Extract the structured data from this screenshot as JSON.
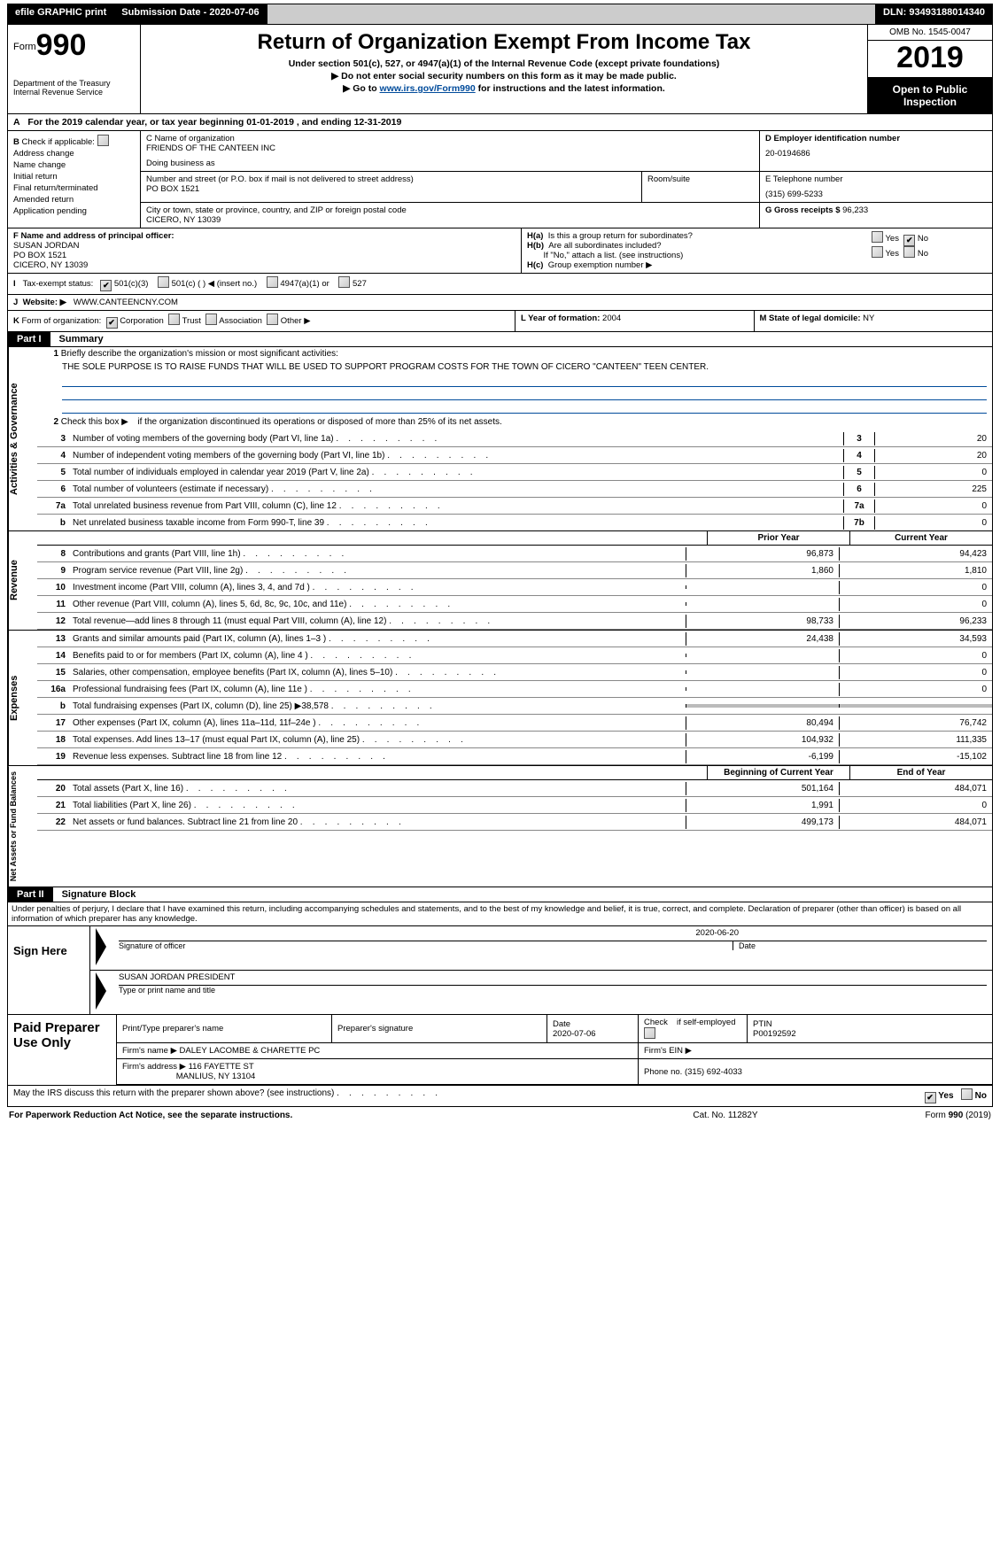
{
  "topbar": {
    "efile": "efile GRAPHIC print",
    "submission_label": "Submission Date - ",
    "submission_date": "2020-07-06",
    "dln_label": "DLN: ",
    "dln": "93493188014340"
  },
  "header": {
    "form_prefix": "Form",
    "form_number": "990",
    "dept": "Department of the Treasury\nInternal Revenue Service",
    "title": "Return of Organization Exempt From Income Tax",
    "sub1": "Under section 501(c), 527, or 4947(a)(1) of the Internal Revenue Code (except private foundations)",
    "sub2": "▶ Do not enter social security numbers on this form as it may be made public.",
    "sub3_pre": "▶ Go to ",
    "sub3_link": "www.irs.gov/Form990",
    "sub3_post": " for instructions and the latest information.",
    "omb": "OMB No. 1545-0047",
    "year": "2019",
    "open": "Open to Public Inspection"
  },
  "line_a": {
    "text_pre": "For the 2019 calendar year, or tax year beginning ",
    "begin": "01-01-2019",
    "mid": " , and ending ",
    "end": "12-31-2019"
  },
  "section_b": {
    "label": "Check if applicable:",
    "opts": [
      "Address change",
      "Name change",
      "Initial return",
      "Final return/terminated",
      "Amended return",
      "Application pending"
    ]
  },
  "section_c": {
    "name_label": "C Name of organization",
    "name": "FRIENDS OF THE CANTEEN INC",
    "dba_label": "Doing business as",
    "dba": "",
    "street_label": "Number and street (or P.O. box if mail is not delivered to street address)",
    "street": "PO BOX 1521",
    "room_label": "Room/suite",
    "city_label": "City or town, state or province, country, and ZIP or foreign postal code",
    "city": "CICERO, NY  13039"
  },
  "section_d": {
    "label": "D Employer identification number",
    "value": "20-0194686"
  },
  "section_e": {
    "label": "E Telephone number",
    "value": "(315) 699-5233"
  },
  "section_g": {
    "label": "G Gross receipts $ ",
    "value": "96,233"
  },
  "section_f": {
    "label": "F  Name and address of principal officer:",
    "name": "SUSAN JORDAN",
    "street": "PO BOX 1521",
    "city": "CICERO, NY  13039"
  },
  "section_h": {
    "a": "Is this a group return for subordinates?",
    "b": "Are all subordinates included?",
    "note": "If \"No,\" attach a list. (see instructions)",
    "c": "Group exemption number ▶",
    "yes": "Yes",
    "no": "No"
  },
  "section_i": {
    "label": "Tax-exempt status:",
    "o1": "501(c)(3)",
    "o2": "501(c) (  ) ◀ (insert no.)",
    "o3": "4947(a)(1) or",
    "o4": "527"
  },
  "section_j": {
    "label": "Website: ▶",
    "value": "WWW.CANTEENCNY.COM"
  },
  "section_k": {
    "label": "Form of organization:",
    "o1": "Corporation",
    "o2": "Trust",
    "o3": "Association",
    "o4": "Other ▶"
  },
  "section_l": {
    "label": "L Year of formation: ",
    "value": "2004"
  },
  "section_m": {
    "label": "M State of legal domicile: ",
    "value": "NY"
  },
  "part1": {
    "tag": "Part I",
    "title": "Summary"
  },
  "activities": {
    "vlabel": "Activities & Governance",
    "l1_label": "Briefly describe the organization's mission or most significant activities:",
    "l1_text": "THE SOLE PURPOSE IS TO RAISE FUNDS THAT WILL BE USED TO SUPPORT PROGRAM COSTS FOR THE TOWN OF CICERO \"CANTEEN\" TEEN CENTER.",
    "l2": "Check this box ▶   if the organization discontinued its operations or disposed of more than 25% of its net assets.",
    "rows": [
      {
        "n": "3",
        "t": "Number of voting members of the governing body (Part VI, line 1a)",
        "m": "3",
        "v": "20"
      },
      {
        "n": "4",
        "t": "Number of independent voting members of the governing body (Part VI, line 1b)",
        "m": "4",
        "v": "20"
      },
      {
        "n": "5",
        "t": "Total number of individuals employed in calendar year 2019 (Part V, line 2a)",
        "m": "5",
        "v": "0"
      },
      {
        "n": "6",
        "t": "Total number of volunteers (estimate if necessary)",
        "m": "6",
        "v": "225"
      },
      {
        "n": "7a",
        "t": "Total unrelated business revenue from Part VIII, column (C), line 12",
        "m": "7a",
        "v": "0"
      },
      {
        "n": "b",
        "t": "Net unrelated business taxable income from Form 990-T, line 39",
        "m": "7b",
        "v": "0"
      }
    ]
  },
  "revenue": {
    "vlabel": "Revenue",
    "head_prior": "Prior Year",
    "head_curr": "Current Year",
    "rows": [
      {
        "n": "8",
        "t": "Contributions and grants (Part VIII, line 1h)",
        "p": "96,873",
        "c": "94,423"
      },
      {
        "n": "9",
        "t": "Program service revenue (Part VIII, line 2g)",
        "p": "1,860",
        "c": "1,810"
      },
      {
        "n": "10",
        "t": "Investment income (Part VIII, column (A), lines 3, 4, and 7d )",
        "p": "",
        "c": "0"
      },
      {
        "n": "11",
        "t": "Other revenue (Part VIII, column (A), lines 5, 6d, 8c, 9c, 10c, and 11e)",
        "p": "",
        "c": "0"
      },
      {
        "n": "12",
        "t": "Total revenue—add lines 8 through 11 (must equal Part VIII, column (A), line 12)",
        "p": "98,733",
        "c": "96,233"
      }
    ]
  },
  "expenses": {
    "vlabel": "Expenses",
    "rows": [
      {
        "n": "13",
        "t": "Grants and similar amounts paid (Part IX, column (A), lines 1–3 )",
        "p": "24,438",
        "c": "34,593"
      },
      {
        "n": "14",
        "t": "Benefits paid to or for members (Part IX, column (A), line 4 )",
        "p": "",
        "c": "0"
      },
      {
        "n": "15",
        "t": "Salaries, other compensation, employee benefits (Part IX, column (A), lines 5–10)",
        "p": "",
        "c": "0"
      },
      {
        "n": "16a",
        "t": "Professional fundraising fees (Part IX, column (A), line 11e )",
        "p": "",
        "c": "0"
      },
      {
        "n": "b",
        "t": "Total fundraising expenses (Part IX, column (D), line 25) ▶38,578",
        "p": "grey",
        "c": "grey"
      },
      {
        "n": "17",
        "t": "Other expenses (Part IX, column (A), lines 11a–11d, 11f–24e )",
        "p": "80,494",
        "c": "76,742"
      },
      {
        "n": "18",
        "t": "Total expenses. Add lines 13–17 (must equal Part IX, column (A), line 25)",
        "p": "104,932",
        "c": "111,335"
      },
      {
        "n": "19",
        "t": "Revenue less expenses. Subtract line 18 from line 12",
        "p": "-6,199",
        "c": "-15,102"
      }
    ]
  },
  "netassets": {
    "vlabel": "Net Assets or Fund Balances",
    "head_begin": "Beginning of Current Year",
    "head_end": "End of Year",
    "rows": [
      {
        "n": "20",
        "t": "Total assets (Part X, line 16)",
        "p": "501,164",
        "c": "484,071"
      },
      {
        "n": "21",
        "t": "Total liabilities (Part X, line 26)",
        "p": "1,991",
        "c": "0"
      },
      {
        "n": "22",
        "t": "Net assets or fund balances. Subtract line 21 from line 20",
        "p": "499,173",
        "c": "484,071"
      }
    ]
  },
  "part2": {
    "tag": "Part II",
    "title": "Signature Block"
  },
  "penalties": "Under penalties of perjury, I declare that I have examined this return, including accompanying schedules and statements, and to the best of my knowledge and belief, it is true, correct, and complete. Declaration of preparer (other than officer) is based on all information of which preparer has any knowledge.",
  "sign": {
    "label": "Sign Here",
    "sig_label": "Signature of officer",
    "date_label": "Date",
    "date": "2020-06-20",
    "name": "SUSAN JORDAN  PRESIDENT",
    "name_label": "Type or print name and title"
  },
  "prep": {
    "label": "Paid Preparer Use Only",
    "h_print": "Print/Type preparer's name",
    "h_sig": "Preparer's signature",
    "h_date": "Date",
    "date": "2020-07-06",
    "h_self": "Check   if self-employed",
    "h_ptin": "PTIN",
    "ptin": "P00192592",
    "firm_label": "Firm's name    ▶ ",
    "firm": "DALEY LACOMBE & CHARETTE PC",
    "ein_label": "Firm's EIN ▶",
    "addr_label": "Firm's address ▶ ",
    "addr1": "116 FAYETTE ST",
    "addr2": "MANLIUS, NY  13104",
    "phone_label": "Phone no. ",
    "phone": "(315) 692-4033"
  },
  "discuss": {
    "q": "May the IRS discuss this return with the preparer shown above? (see instructions)",
    "yes": "Yes",
    "no": "No"
  },
  "footer": {
    "l": "For Paperwork Reduction Act Notice, see the separate instructions.",
    "m": "Cat. No. 11282Y",
    "r_pre": "Form ",
    "r_b": "990",
    "r_post": " (2019)"
  }
}
